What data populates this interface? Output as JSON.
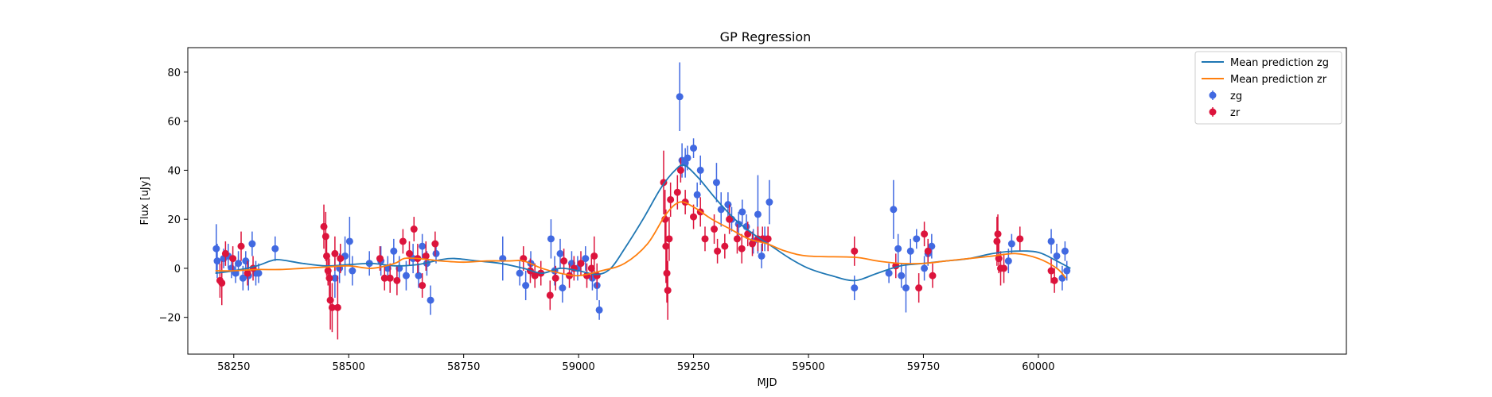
{
  "chart_data": {
    "type": "scatter",
    "title": "GP Regression",
    "xlabel": "MJD",
    "ylabel": "Flux [uJy]",
    "xlim": [
      58150,
      60670
    ],
    "ylim": [
      -35,
      90
    ],
    "xticks": [
      58250,
      58500,
      58750,
      59000,
      59250,
      59500,
      59750,
      60000
    ],
    "yticks": [
      -20,
      0,
      20,
      40,
      60,
      80
    ],
    "legend_position": "top-right",
    "legend": [
      {
        "label": "Mean prediction zg",
        "kind": "line",
        "color": "#1f77b4"
      },
      {
        "label": "Mean prediction zr",
        "kind": "line",
        "color": "#ff7f0e"
      },
      {
        "label": "zg",
        "kind": "errorbar",
        "color": "#4169e1"
      },
      {
        "label": "zr",
        "kind": "errorbar",
        "color": "#dc143c"
      }
    ],
    "lines": [
      {
        "name": "Mean prediction zg",
        "color": "#1f77b4",
        "points": [
          [
            58210,
            -2
          ],
          [
            58250,
            -1
          ],
          [
            58300,
            1
          ],
          [
            58330,
            3
          ],
          [
            58350,
            3.5
          ],
          [
            58400,
            2
          ],
          [
            58450,
            1
          ],
          [
            58500,
            1.5
          ],
          [
            58550,
            2
          ],
          [
            58600,
            1
          ],
          [
            58650,
            1.5
          ],
          [
            58700,
            3.5
          ],
          [
            58730,
            4
          ],
          [
            58780,
            3
          ],
          [
            58830,
            2
          ],
          [
            58880,
            0
          ],
          [
            58920,
            -2
          ],
          [
            58960,
            0
          ],
          [
            59000,
            -1
          ],
          [
            59040,
            -2.5
          ],
          [
            59070,
            0
          ],
          [
            59100,
            8
          ],
          [
            59140,
            20
          ],
          [
            59180,
            33
          ],
          [
            59210,
            40
          ],
          [
            59230,
            42
          ],
          [
            59260,
            37
          ],
          [
            59300,
            28
          ],
          [
            59340,
            20
          ],
          [
            59380,
            14
          ],
          [
            59420,
            9
          ],
          [
            59460,
            4
          ],
          [
            59500,
            0
          ],
          [
            59550,
            -3
          ],
          [
            59600,
            -5
          ],
          [
            59650,
            -2
          ],
          [
            59700,
            1
          ],
          [
            59750,
            2
          ],
          [
            59800,
            3
          ],
          [
            59850,
            4
          ],
          [
            59900,
            6
          ],
          [
            59950,
            7
          ],
          [
            60000,
            6.5
          ],
          [
            60040,
            3
          ],
          [
            60070,
            0
          ]
        ]
      },
      {
        "name": "Mean prediction zr",
        "color": "#ff7f0e",
        "points": [
          [
            58210,
            -1
          ],
          [
            58250,
            -1
          ],
          [
            58300,
            -0.5
          ],
          [
            58350,
            -0.5
          ],
          [
            58400,
            0
          ],
          [
            58450,
            0.5
          ],
          [
            58500,
            1
          ],
          [
            58550,
            0
          ],
          [
            58600,
            2
          ],
          [
            58620,
            4
          ],
          [
            58650,
            4
          ],
          [
            58700,
            3
          ],
          [
            58750,
            2.5
          ],
          [
            58800,
            3
          ],
          [
            58850,
            3
          ],
          [
            58880,
            3
          ],
          [
            58920,
            0
          ],
          [
            58960,
            -2
          ],
          [
            59000,
            -3
          ],
          [
            59050,
            -1
          ],
          [
            59100,
            2
          ],
          [
            59150,
            10
          ],
          [
            59190,
            22
          ],
          [
            59220,
            27
          ],
          [
            59250,
            25
          ],
          [
            59290,
            20
          ],
          [
            59330,
            16
          ],
          [
            59370,
            12
          ],
          [
            59410,
            10
          ],
          [
            59450,
            7
          ],
          [
            59500,
            5
          ],
          [
            59600,
            4.5
          ],
          [
            59650,
            3
          ],
          [
            59700,
            2
          ],
          [
            59750,
            2
          ],
          [
            59800,
            3
          ],
          [
            59850,
            4
          ],
          [
            59900,
            5
          ],
          [
            59950,
            6
          ],
          [
            60000,
            4
          ],
          [
            60040,
            0
          ],
          [
            60060,
            -4
          ]
        ]
      }
    ],
    "series": [
      {
        "name": "zg",
        "color": "#4169e1",
        "points": [
          [
            58212,
            8,
            10
          ],
          [
            58214,
            3,
            7
          ],
          [
            58228,
            4,
            4
          ],
          [
            58238,
            5,
            5
          ],
          [
            58245,
            0,
            4
          ],
          [
            58254,
            -2,
            4
          ],
          [
            58260,
            2,
            5
          ],
          [
            58270,
            -4,
            5
          ],
          [
            58276,
            3,
            4
          ],
          [
            58282,
            -3,
            6
          ],
          [
            58290,
            10,
            5
          ],
          [
            58298,
            -2,
            5
          ],
          [
            58304,
            -2,
            4
          ],
          [
            58340,
            8,
            5
          ],
          [
            58470,
            -4,
            8
          ],
          [
            58480,
            0,
            6
          ],
          [
            58492,
            5,
            8
          ],
          [
            58502,
            11,
            10
          ],
          [
            58508,
            -1,
            6
          ],
          [
            58545,
            2,
            5
          ],
          [
            58570,
            3,
            6
          ],
          [
            58585,
            0,
            5
          ],
          [
            58598,
            7,
            5
          ],
          [
            58610,
            0,
            5
          ],
          [
            58625,
            -3,
            6
          ],
          [
            58640,
            4,
            6
          ],
          [
            58652,
            -3,
            5
          ],
          [
            58660,
            9,
            5
          ],
          [
            58670,
            2,
            5
          ],
          [
            58678,
            -13,
            6
          ],
          [
            58690,
            6,
            4
          ],
          [
            58835,
            4,
            9
          ],
          [
            58872,
            -2,
            5
          ],
          [
            58885,
            -7,
            6
          ],
          [
            58896,
            2,
            5
          ],
          [
            58940,
            12,
            8
          ],
          [
            58948,
            -1,
            6
          ],
          [
            58960,
            6,
            6
          ],
          [
            58965,
            -8,
            6
          ],
          [
            58985,
            2,
            5
          ],
          [
            58998,
            0,
            5
          ],
          [
            59015,
            4,
            5
          ],
          [
            59030,
            -4,
            5
          ],
          [
            59040,
            -7,
            6
          ],
          [
            59045,
            -17,
            4
          ],
          [
            59220,
            70,
            14
          ],
          [
            59225,
            44,
            7
          ],
          [
            59232,
            43,
            6
          ],
          [
            59237,
            45,
            5
          ],
          [
            59250,
            49,
            4
          ],
          [
            59258,
            30,
            5
          ],
          [
            59265,
            40,
            6
          ],
          [
            59300,
            35,
            8
          ],
          [
            59310,
            24,
            7
          ],
          [
            59325,
            26,
            5
          ],
          [
            59333,
            20,
            5
          ],
          [
            59348,
            18,
            5
          ],
          [
            59356,
            23,
            5
          ],
          [
            59365,
            17,
            5
          ],
          [
            59380,
            11,
            5
          ],
          [
            59390,
            22,
            16
          ],
          [
            59398,
            5,
            5
          ],
          [
            59405,
            12,
            5
          ],
          [
            59415,
            27,
            9
          ],
          [
            59600,
            -8,
            5
          ],
          [
            59675,
            -2,
            4
          ],
          [
            59685,
            24,
            12
          ],
          [
            59695,
            8,
            6
          ],
          [
            59702,
            -3,
            5
          ],
          [
            59712,
            -8,
            10
          ],
          [
            59722,
            7,
            5
          ],
          [
            59735,
            12,
            4
          ],
          [
            59752,
            0,
            5
          ],
          [
            59760,
            6,
            5
          ],
          [
            59768,
            9,
            5
          ],
          [
            59935,
            3,
            5
          ],
          [
            59942,
            10,
            4
          ],
          [
            60028,
            11,
            5
          ],
          [
            60040,
            5,
            5
          ],
          [
            60052,
            -4,
            5
          ],
          [
            60058,
            7,
            4
          ],
          [
            60062,
            -1,
            4
          ]
        ]
      },
      {
        "name": "zr",
        "color": "#dc143c",
        "points": [
          [
            58220,
            -5,
            7
          ],
          [
            58224,
            -6,
            9
          ],
          [
            58232,
            6,
            5
          ],
          [
            58248,
            4,
            5
          ],
          [
            58266,
            9,
            6
          ],
          [
            58280,
            -2,
            5
          ],
          [
            58292,
            0,
            5
          ],
          [
            58446,
            17,
            9
          ],
          [
            58450,
            13,
            10
          ],
          [
            58452,
            5,
            8
          ],
          [
            58455,
            -1,
            6
          ],
          [
            58458,
            -4,
            8
          ],
          [
            58460,
            -13,
            12
          ],
          [
            58464,
            -16,
            10
          ],
          [
            58470,
            6,
            7
          ],
          [
            58476,
            -16,
            13
          ],
          [
            58482,
            4,
            6
          ],
          [
            58568,
            4,
            5
          ],
          [
            58578,
            -4,
            5
          ],
          [
            58590,
            -4,
            6
          ],
          [
            58605,
            -5,
            6
          ],
          [
            58618,
            11,
            5
          ],
          [
            58632,
            6,
            5
          ],
          [
            58642,
            16,
            5
          ],
          [
            58650,
            4,
            6
          ],
          [
            58660,
            -7,
            5
          ],
          [
            58668,
            5,
            6
          ],
          [
            58688,
            10,
            5
          ],
          [
            58880,
            4,
            5
          ],
          [
            58895,
            -1,
            5
          ],
          [
            58905,
            -3,
            5
          ],
          [
            58918,
            -2,
            5
          ],
          [
            58938,
            -11,
            6
          ],
          [
            58950,
            -4,
            5
          ],
          [
            58968,
            3,
            5
          ],
          [
            58980,
            -3,
            5
          ],
          [
            58990,
            0,
            5
          ],
          [
            59005,
            2,
            5
          ],
          [
            59018,
            -3,
            5
          ],
          [
            59028,
            0,
            5
          ],
          [
            59034,
            5,
            8
          ],
          [
            59040,
            -3,
            5
          ],
          [
            59185,
            35,
            13
          ],
          [
            59188,
            20,
            12
          ],
          [
            59190,
            9,
            15
          ],
          [
            59192,
            -2,
            12
          ],
          [
            59194,
            -9,
            12
          ],
          [
            59197,
            12,
            9
          ],
          [
            59200,
            28,
            7
          ],
          [
            59215,
            31,
            7
          ],
          [
            59222,
            40,
            5
          ],
          [
            59232,
            27,
            5
          ],
          [
            59250,
            21,
            5
          ],
          [
            59265,
            23,
            6
          ],
          [
            59275,
            12,
            5
          ],
          [
            59295,
            16,
            6
          ],
          [
            59302,
            7,
            5
          ],
          [
            59318,
            9,
            5
          ],
          [
            59328,
            20,
            6
          ],
          [
            59345,
            12,
            6
          ],
          [
            59355,
            8,
            6
          ],
          [
            59368,
            14,
            5
          ],
          [
            59378,
            10,
            5
          ],
          [
            59390,
            12,
            5
          ],
          [
            59400,
            12,
            5
          ],
          [
            59412,
            12,
            5
          ],
          [
            59600,
            7,
            6
          ],
          [
            59690,
            1,
            5
          ],
          [
            59740,
            -8,
            6
          ],
          [
            59752,
            14,
            5
          ],
          [
            59760,
            7,
            5
          ],
          [
            59770,
            -3,
            5
          ],
          [
            59910,
            11,
            10
          ],
          [
            59912,
            14,
            8
          ],
          [
            59914,
            4,
            6
          ],
          [
            59918,
            0,
            7
          ],
          [
            59925,
            0,
            6
          ],
          [
            59960,
            12,
            5
          ],
          [
            60028,
            -1,
            5
          ],
          [
            60035,
            -5,
            5
          ]
        ]
      }
    ]
  }
}
